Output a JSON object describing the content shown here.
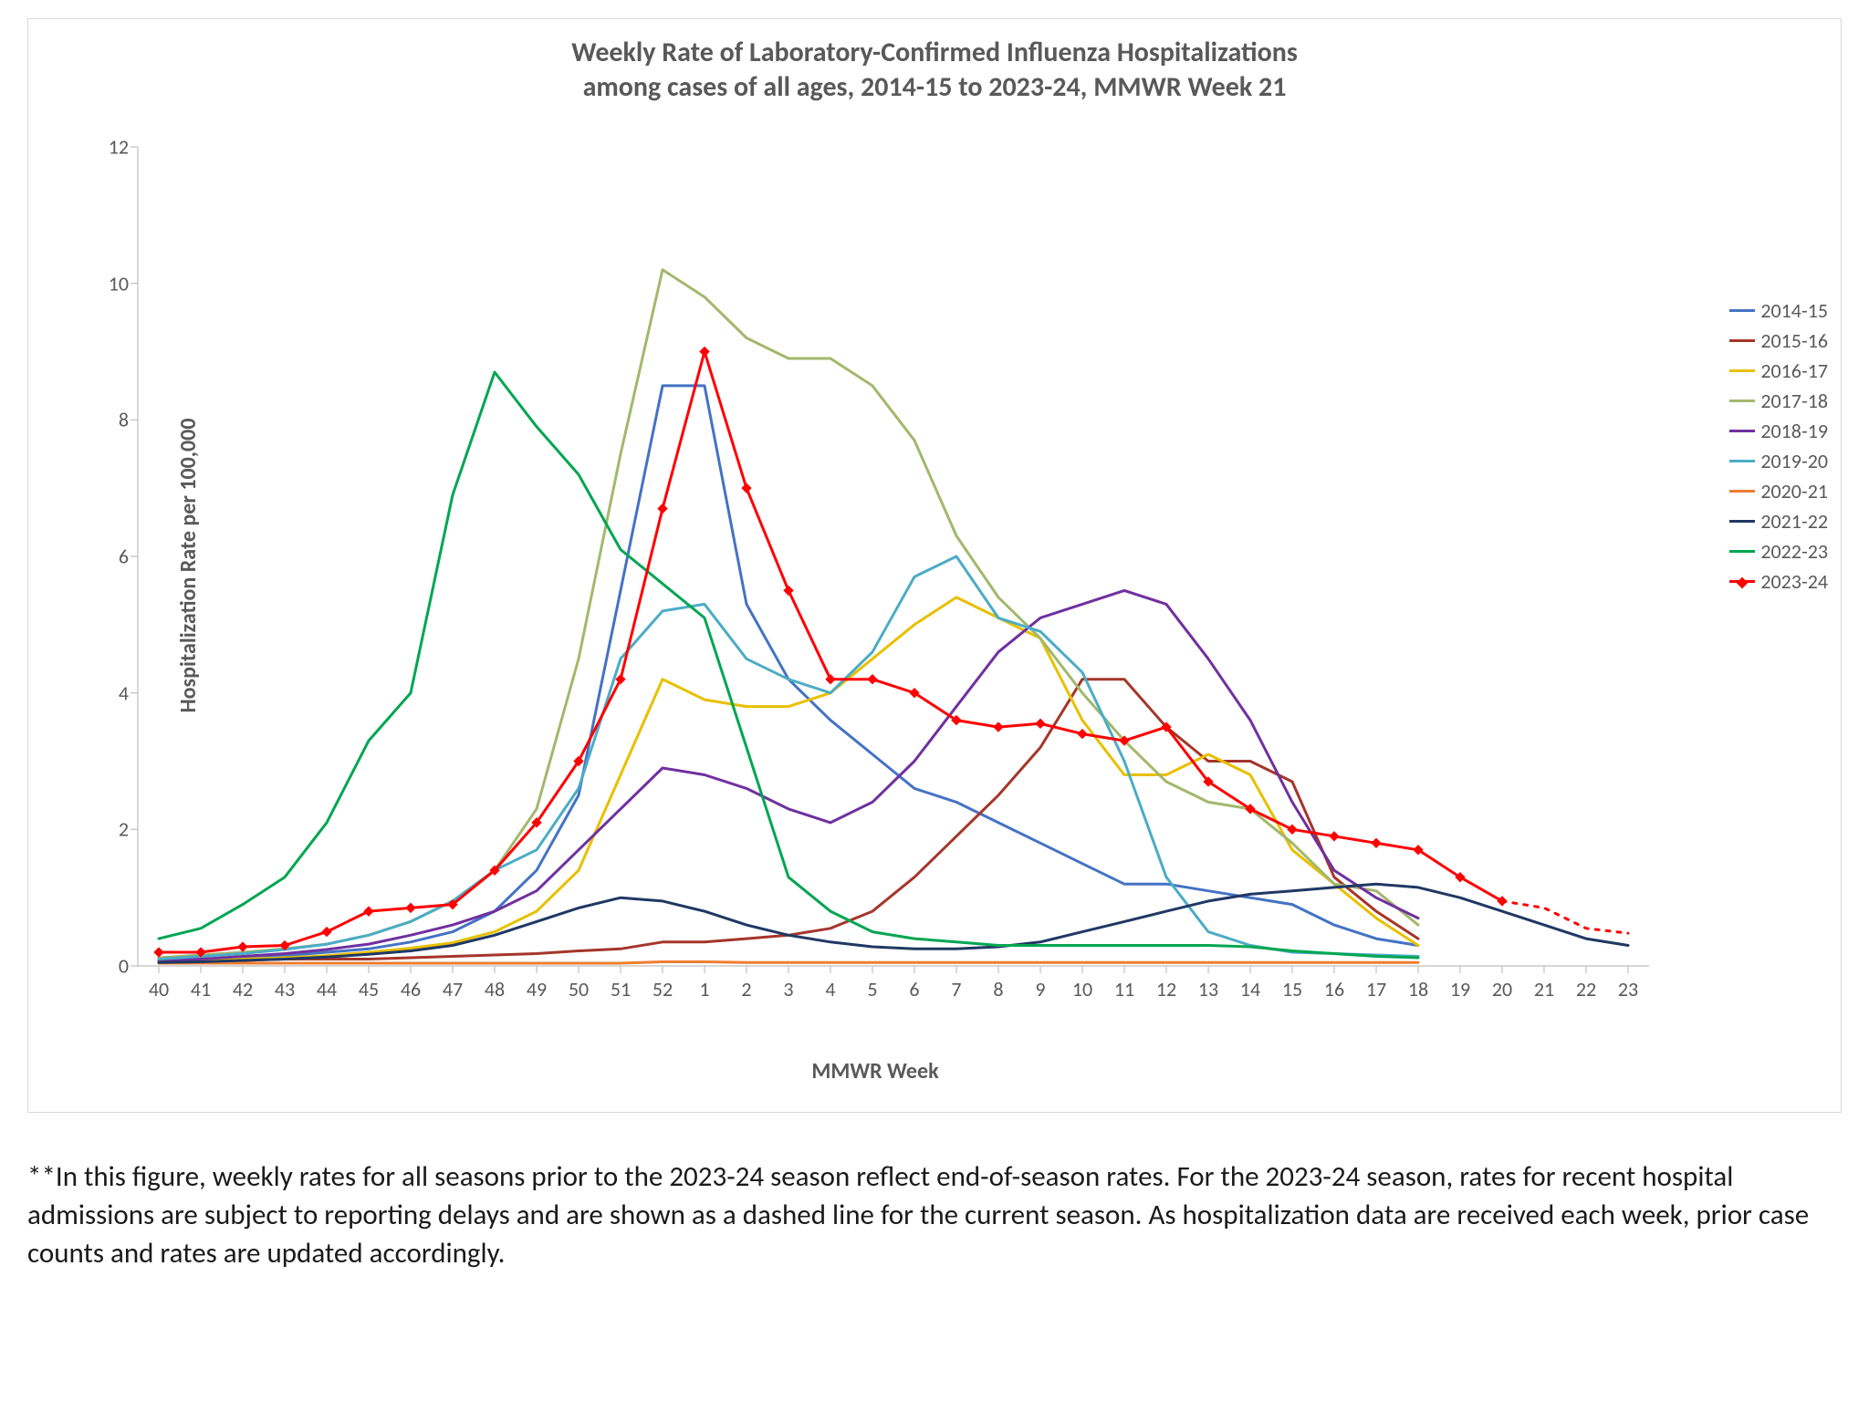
{
  "chart": {
    "title_line1": "Weekly Rate of Laboratory-Confirmed Influenza Hospitalizations",
    "title_line2": "among cases of all ages, 2014-15 to 2023-24, MMWR Week 21",
    "title_fontsize": 30,
    "xlabel": "MMWR Week",
    "ylabel": "Hospitalization Rate per 100,000",
    "axis_label_fontsize": 24,
    "tick_fontsize": 22,
    "background_color": "#ffffff",
    "border_color": "#d9d9d9",
    "axis_color": "#bfbfbf",
    "tick_color": "#bfbfbf",
    "grid": false,
    "ylim": [
      0,
      12
    ],
    "ytick_step": 2,
    "x_categories": [
      "40",
      "41",
      "42",
      "43",
      "44",
      "45",
      "46",
      "47",
      "48",
      "49",
      "50",
      "51",
      "52",
      "1",
      "2",
      "3",
      "4",
      "5",
      "6",
      "7",
      "8",
      "9",
      "10",
      "11",
      "12",
      "13",
      "14",
      "15",
      "16",
      "17",
      "18",
      "19",
      "20",
      "21",
      "22",
      "23"
    ],
    "line_width": 3,
    "marker_size": 5,
    "series": [
      {
        "label": "2014-15",
        "color": "#4472c4",
        "marker": false,
        "values": [
          0.1,
          0.1,
          0.12,
          0.15,
          0.2,
          0.25,
          0.35,
          0.5,
          0.8,
          1.4,
          2.5,
          5.5,
          8.5,
          8.5,
          5.3,
          4.2,
          3.6,
          3.1,
          2.6,
          2.4,
          2.1,
          1.8,
          1.5,
          1.2,
          1.2,
          1.1,
          1.0,
          0.9,
          0.6,
          0.4,
          0.3
        ]
      },
      {
        "label": "2015-16",
        "color": "#a5352a",
        "marker": false,
        "values": [
          0.08,
          0.08,
          0.08,
          0.1,
          0.1,
          0.1,
          0.12,
          0.14,
          0.16,
          0.18,
          0.22,
          0.25,
          0.35,
          0.35,
          0.4,
          0.45,
          0.55,
          0.8,
          1.3,
          1.9,
          2.5,
          3.2,
          4.2,
          4.2,
          3.5,
          3.0,
          3.0,
          2.7,
          1.3,
          0.8,
          0.4
        ]
      },
      {
        "label": "2016-17",
        "color": "#e8c000",
        "marker": false,
        "values": [
          0.06,
          0.08,
          0.1,
          0.12,
          0.15,
          0.2,
          0.26,
          0.34,
          0.5,
          0.8,
          1.4,
          2.8,
          4.2,
          3.9,
          3.8,
          3.8,
          4.0,
          4.5,
          5.0,
          5.4,
          5.1,
          4.8,
          3.6,
          2.8,
          2.8,
          3.1,
          2.8,
          1.7,
          1.2,
          0.7,
          0.3
        ]
      },
      {
        "label": "2017-18",
        "color": "#a2b86c",
        "marker": false,
        "values": [
          0.12,
          0.16,
          0.2,
          0.25,
          0.32,
          0.45,
          0.65,
          0.95,
          1.4,
          2.3,
          4.5,
          7.5,
          10.2,
          9.8,
          9.2,
          8.9,
          8.9,
          8.5,
          7.7,
          6.3,
          5.4,
          4.8,
          4.0,
          3.3,
          2.7,
          2.4,
          2.3,
          1.8,
          1.2,
          1.1,
          0.6
        ]
      },
      {
        "label": "2018-19",
        "color": "#7030a0",
        "marker": false,
        "values": [
          0.08,
          0.1,
          0.14,
          0.18,
          0.24,
          0.32,
          0.45,
          0.6,
          0.8,
          1.1,
          1.7,
          2.3,
          2.9,
          2.8,
          2.6,
          2.3,
          2.1,
          2.4,
          3.0,
          3.8,
          4.6,
          5.1,
          5.3,
          5.5,
          5.3,
          4.5,
          3.6,
          2.4,
          1.4,
          1.0,
          0.7
        ]
      },
      {
        "label": "2019-20",
        "color": "#4bacc6",
        "marker": false,
        "values": [
          0.1,
          0.14,
          0.18,
          0.24,
          0.32,
          0.45,
          0.65,
          0.95,
          1.4,
          1.7,
          2.6,
          4.5,
          5.2,
          5.3,
          4.5,
          4.2,
          4.0,
          4.6,
          5.7,
          6.0,
          5.1,
          4.9,
          4.3,
          3.0,
          1.3,
          0.5,
          0.3,
          0.2,
          0.18,
          0.16,
          0.14
        ]
      },
      {
        "label": "2020-21",
        "color": "#ed7d31",
        "marker": false,
        "values": [
          0.04,
          0.04,
          0.04,
          0.04,
          0.04,
          0.04,
          0.04,
          0.04,
          0.04,
          0.04,
          0.04,
          0.04,
          0.06,
          0.06,
          0.05,
          0.05,
          0.05,
          0.05,
          0.05,
          0.05,
          0.05,
          0.05,
          0.05,
          0.05,
          0.05,
          0.05,
          0.05,
          0.05,
          0.05,
          0.05,
          0.05
        ]
      },
      {
        "label": "2021-22",
        "color": "#1f3864",
        "marker": false,
        "values": [
          0.05,
          0.06,
          0.08,
          0.1,
          0.13,
          0.17,
          0.22,
          0.3,
          0.45,
          0.65,
          0.85,
          1.0,
          0.95,
          0.8,
          0.6,
          0.45,
          0.35,
          0.28,
          0.25,
          0.25,
          0.28,
          0.35,
          0.5,
          0.65,
          0.8,
          0.95,
          1.05,
          1.1,
          1.15,
          1.2,
          1.15,
          1.0,
          0.8,
          0.6,
          0.4,
          0.3
        ]
      },
      {
        "label": "2022-23",
        "color": "#00a651",
        "marker": false,
        "values": [
          0.4,
          0.55,
          0.9,
          1.3,
          2.1,
          3.3,
          4.0,
          6.9,
          8.7,
          7.9,
          7.2,
          6.1,
          5.6,
          5.1,
          3.2,
          1.3,
          0.8,
          0.5,
          0.4,
          0.35,
          0.3,
          0.3,
          0.3,
          0.3,
          0.3,
          0.3,
          0.28,
          0.22,
          0.18,
          0.14,
          0.12
        ]
      },
      {
        "label": "2023-24",
        "color": "#ff0000",
        "marker": true,
        "values": [
          0.2,
          0.2,
          0.28,
          0.3,
          0.5,
          0.8,
          0.85,
          0.9,
          1.4,
          2.1,
          3.0,
          4.2,
          6.7,
          9.0,
          7.0,
          5.5,
          4.2,
          4.2,
          4.0,
          3.6,
          3.5,
          3.55,
          3.4,
          3.3,
          3.5,
          2.7,
          2.3,
          2.0,
          1.9,
          1.8,
          1.7,
          1.3,
          0.95,
          0.85,
          0.55,
          0.48
        ],
        "dash_from_index": 32
      }
    ],
    "legend_fontsize": 22
  },
  "footnote": "**In this figure, weekly rates for all seasons prior to the 2023-24 season reflect end-of-season rates. For the 2023-24 season, rates for recent hospital admissions are subject to reporting delays and are shown as a dashed line for the current season. As hospitalization data are received each week, prior case counts and rates are updated accordingly."
}
